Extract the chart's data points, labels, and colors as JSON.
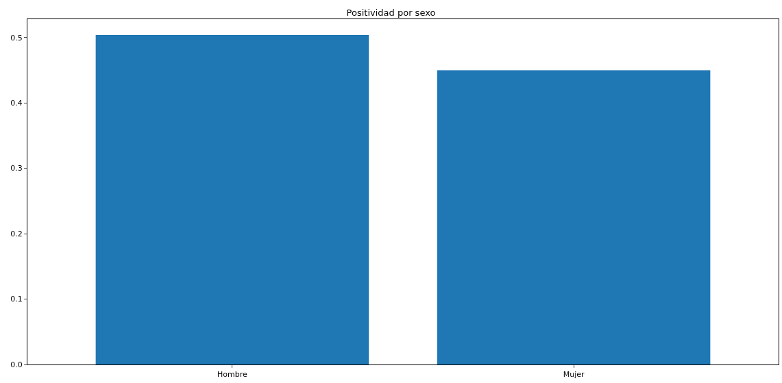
{
  "chart_data": {
    "type": "bar",
    "title": "Positividad por sexo",
    "categories": [
      "Hombre",
      "Mujer"
    ],
    "values": [
      0.504,
      0.45
    ],
    "color": "#1f77b4",
    "ylim": [
      0,
      0.528
    ],
    "yticks": [
      {
        "value": 0,
        "label": "0.0"
      },
      0.1,
      0.2,
      0.3,
      0.4,
      0.5
    ],
    "grid": false
  }
}
